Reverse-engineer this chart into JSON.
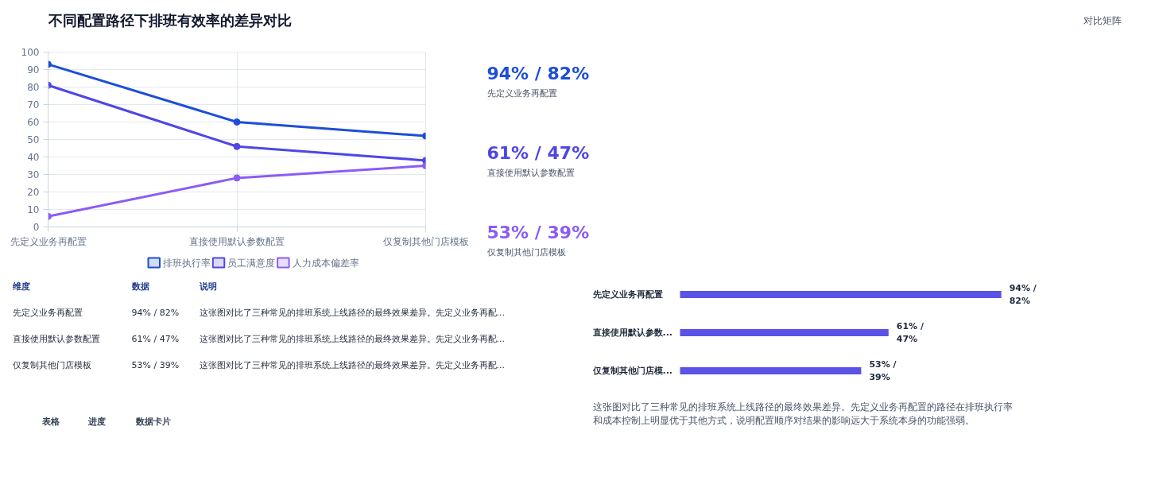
{
  "chart_data": [
    {
      "type": "other",
      "annotations": [
        "不同配置路径下排班有效率的差异对比",
        "对比矩阵"
      ]
    },
    {
      "type": "line",
      "categories": [
        "先定义业务再配置",
        "直接使用默认参数配置",
        "仅复制其他门店模板"
      ],
      "ylim": [
        0,
        100
      ],
      "yticks": [
        0,
        10,
        20,
        30,
        40,
        50,
        60,
        70,
        80,
        90,
        100
      ],
      "grid": true,
      "marker": "circle",
      "legend": "bottom",
      "series": [
        {
          "name": "排班执行率",
          "color": "#1d4ed8",
          "values": [
            93,
            60,
            52
          ]
        },
        {
          "name": "员工满意度",
          "color": "#4f46e5",
          "values": [
            81,
            46,
            38
          ]
        },
        {
          "name": "人力成本偏差率",
          "color": "#8b5cf6",
          "values": [
            6,
            28,
            35
          ]
        }
      ]
    },
    {
      "type": "other",
      "colors": [
        "#1d4ed8",
        "#4f46e5",
        "#8b5cf6"
      ],
      "annotations": [
        "94% / 82%",
        "先定义业务再配置",
        "61% / 47%",
        "直接使用默认参数配置",
        "53% / 39%",
        "仅复制其他门店模板"
      ]
    },
    {
      "type": "other",
      "annotations": [
        "维度",
        "数据",
        "说明",
        "先定义业务再配置",
        "94% / 82%",
        "这张图对比了三种常见的排班系统上线路径的最终效果差异。先定义业务再配...",
        "直接使用默认参数配置",
        "61% / 47%",
        "这张图对比了三种常见的排班系统上线路径的最终效果差异。先定义业务再配...",
        "仅复制其他门店模板",
        "53% / 39%",
        "这张图对比了三种常见的排班系统上线路径的最终效果差异。先定义业务再配..."
      ]
    },
    {
      "type": "bar",
      "orientation": "horizontal",
      "categories": [
        "先定义业务再配置",
        "直接使用默认参数...",
        "仅复制其他门店模..."
      ],
      "values": [
        94,
        61,
        53
      ],
      "color": "#5b52e6",
      "value_labels": [
        "94% / 82%",
        "61% / 47%",
        "53% / 39%"
      ],
      "annotations": [
        "这张图对比了三种常见的排班系统上线路径的最终效果差异。先定义业务再配置的路径在排班执行率和成本控制上明显优于其他方式，说明配置顺序对结果的影响远大于系统本身的功能强弱。"
      ]
    },
    {
      "type": "other",
      "annotations": [
        "表格",
        "进度",
        "数据卡片"
      ]
    }
  ]
}
